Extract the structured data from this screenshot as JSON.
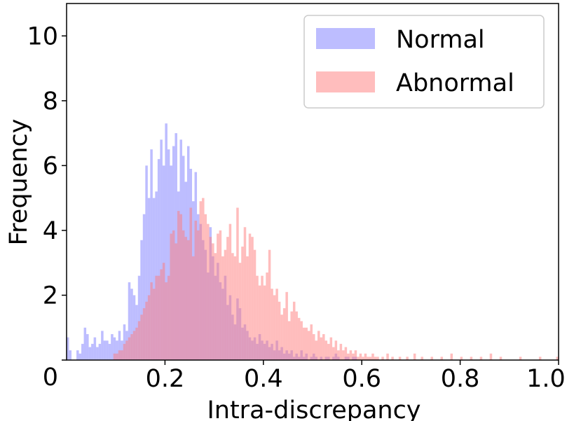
{
  "chart_data": {
    "type": "histogram",
    "title": "",
    "xlabel": "Intra-discrepancy",
    "ylabel": "Frequency",
    "xlim": [
      0.0,
      1.0
    ],
    "ylim": [
      0,
      11
    ],
    "bin_width": 0.005,
    "x_ticks": [
      {
        "value": 0.2,
        "label": "0.2"
      },
      {
        "value": 0.4,
        "label": "0.4"
      },
      {
        "value": 0.6,
        "label": "0.6"
      },
      {
        "value": 0.8,
        "label": "0.8"
      },
      {
        "value": 1.0,
        "label": "1.0"
      }
    ],
    "y_ticks": [
      {
        "value": 0,
        "label": "0"
      },
      {
        "value": 2,
        "label": "2"
      },
      {
        "value": 4,
        "label": "4"
      },
      {
        "value": 6,
        "label": "6"
      },
      {
        "value": 8,
        "label": "8"
      },
      {
        "value": 10,
        "label": "10"
      }
    ],
    "legend": {
      "position": "top-right"
    },
    "series": [
      {
        "name": "Normal",
        "color": "#7b7bff",
        "opacity": 0.5,
        "bins": [
          [
            0.0,
            0.7
          ],
          [
            0.005,
            0.3
          ],
          [
            0.01,
            0.0
          ],
          [
            0.015,
            0.0
          ],
          [
            0.02,
            0.3
          ],
          [
            0.025,
            0.2
          ],
          [
            0.03,
            0.5
          ],
          [
            0.035,
            1.0
          ],
          [
            0.04,
            0.8
          ],
          [
            0.045,
            0.4
          ],
          [
            0.05,
            0.5
          ],
          [
            0.055,
            0.7
          ],
          [
            0.06,
            0.4
          ],
          [
            0.065,
            0.5
          ],
          [
            0.07,
            0.9
          ],
          [
            0.075,
            0.6
          ],
          [
            0.08,
            0.6
          ],
          [
            0.085,
            0.5
          ],
          [
            0.09,
            0.8
          ],
          [
            0.095,
            0.7
          ],
          [
            0.1,
            0.6
          ],
          [
            0.105,
            0.9
          ],
          [
            0.11,
            0.6
          ],
          [
            0.115,
            1.1
          ],
          [
            0.12,
            0.9
          ],
          [
            0.125,
            2.4
          ],
          [
            0.13,
            2.2
          ],
          [
            0.135,
            2.0
          ],
          [
            0.14,
            1.7
          ],
          [
            0.145,
            2.6
          ],
          [
            0.15,
            3.7
          ],
          [
            0.155,
            4.5
          ],
          [
            0.16,
            6.0
          ],
          [
            0.165,
            5.0
          ],
          [
            0.17,
            6.5
          ],
          [
            0.175,
            5.0
          ],
          [
            0.18,
            5.2
          ],
          [
            0.185,
            6.2
          ],
          [
            0.19,
            6.8
          ],
          [
            0.195,
            6.0
          ],
          [
            0.2,
            7.3
          ],
          [
            0.205,
            6.5
          ],
          [
            0.21,
            6.0
          ],
          [
            0.215,
            6.6
          ],
          [
            0.22,
            7.0
          ],
          [
            0.225,
            5.2
          ],
          [
            0.23,
            6.8
          ],
          [
            0.235,
            6.3
          ],
          [
            0.24,
            5.5
          ],
          [
            0.245,
            6.6
          ],
          [
            0.25,
            5.9
          ],
          [
            0.255,
            4.9
          ],
          [
            0.26,
            5.8
          ],
          [
            0.265,
            4.5
          ],
          [
            0.27,
            4.2
          ],
          [
            0.275,
            3.7
          ],
          [
            0.28,
            3.4
          ],
          [
            0.285,
            2.7
          ],
          [
            0.29,
            4.1
          ],
          [
            0.295,
            3.2
          ],
          [
            0.3,
            2.6
          ],
          [
            0.305,
            3.0
          ],
          [
            0.31,
            2.4
          ],
          [
            0.315,
            2.2
          ],
          [
            0.32,
            2.6
          ],
          [
            0.325,
            1.7
          ],
          [
            0.33,
            2.0
          ],
          [
            0.335,
            1.4
          ],
          [
            0.34,
            1.1
          ],
          [
            0.345,
            1.9
          ],
          [
            0.35,
            1.6
          ],
          [
            0.355,
            1.0
          ],
          [
            0.36,
            1.1
          ],
          [
            0.365,
            0.9
          ],
          [
            0.37,
            0.7
          ],
          [
            0.375,
            0.6
          ],
          [
            0.38,
            0.7
          ],
          [
            0.385,
            0.5
          ],
          [
            0.39,
            0.8
          ],
          [
            0.395,
            0.6
          ],
          [
            0.4,
            0.5
          ],
          [
            0.405,
            0.6
          ],
          [
            0.41,
            0.4
          ],
          [
            0.415,
            0.5
          ],
          [
            0.42,
            0.3
          ],
          [
            0.425,
            0.6
          ],
          [
            0.43,
            0.3
          ],
          [
            0.435,
            0.4
          ],
          [
            0.44,
            0.2
          ],
          [
            0.445,
            0.3
          ],
          [
            0.45,
            0.2
          ],
          [
            0.455,
            0.3
          ],
          [
            0.46,
            0.1
          ],
          [
            0.465,
            0.2
          ],
          [
            0.47,
            0.1
          ],
          [
            0.475,
            0.3
          ],
          [
            0.48,
            0.1
          ],
          [
            0.485,
            0.2
          ],
          [
            0.49,
            0.0
          ],
          [
            0.495,
            0.1
          ],
          [
            0.5,
            0.2
          ],
          [
            0.505,
            0.1
          ],
          [
            0.51,
            0.0
          ],
          [
            0.515,
            0.1
          ],
          [
            0.52,
            0.0
          ],
          [
            0.525,
            0.1
          ],
          [
            0.53,
            0.1
          ],
          [
            0.535,
            0.0
          ],
          [
            0.54,
            0.1
          ],
          [
            0.545,
            0.2
          ],
          [
            0.55,
            0.1
          ],
          [
            0.555,
            0.0
          ],
          [
            0.56,
            0.0
          ],
          [
            0.565,
            0.1
          ],
          [
            0.57,
            0.1
          ],
          [
            0.575,
            0.0
          ],
          [
            0.58,
            0.1
          ],
          [
            0.585,
            0.1
          ]
        ]
      },
      {
        "name": "Abnormal",
        "color": "#ff7b7b",
        "opacity": 0.5,
        "bins": [
          [
            0.095,
            0.2
          ],
          [
            0.1,
            0.2
          ],
          [
            0.105,
            0.3
          ],
          [
            0.11,
            0.3
          ],
          [
            0.115,
            0.5
          ],
          [
            0.12,
            0.6
          ],
          [
            0.125,
            0.7
          ],
          [
            0.13,
            0.8
          ],
          [
            0.135,
            0.9
          ],
          [
            0.14,
            1.0
          ],
          [
            0.145,
            1.2
          ],
          [
            0.15,
            1.4
          ],
          [
            0.155,
            1.6
          ],
          [
            0.16,
            1.8
          ],
          [
            0.165,
            2.0
          ],
          [
            0.17,
            2.4
          ],
          [
            0.175,
            2.2
          ],
          [
            0.18,
            2.6
          ],
          [
            0.185,
            2.6
          ],
          [
            0.19,
            2.8
          ],
          [
            0.195,
            3.0
          ],
          [
            0.2,
            2.4
          ],
          [
            0.205,
            2.6
          ],
          [
            0.21,
            3.9
          ],
          [
            0.215,
            4.0
          ],
          [
            0.22,
            3.6
          ],
          [
            0.225,
            4.6
          ],
          [
            0.23,
            4.5
          ],
          [
            0.235,
            4.0
          ],
          [
            0.24,
            3.8
          ],
          [
            0.245,
            3.7
          ],
          [
            0.25,
            4.7
          ],
          [
            0.255,
            3.2
          ],
          [
            0.26,
            4.3
          ],
          [
            0.265,
            4.0
          ],
          [
            0.27,
            4.9
          ],
          [
            0.275,
            5.0
          ],
          [
            0.28,
            4.5
          ],
          [
            0.285,
            4.2
          ],
          [
            0.29,
            3.8
          ],
          [
            0.295,
            3.6
          ],
          [
            0.3,
            3.3
          ],
          [
            0.305,
            3.9
          ],
          [
            0.31,
            4.0
          ],
          [
            0.315,
            3.2
          ],
          [
            0.32,
            3.4
          ],
          [
            0.325,
            3.8
          ],
          [
            0.33,
            4.2
          ],
          [
            0.335,
            3.3
          ],
          [
            0.34,
            3.2
          ],
          [
            0.345,
            4.7
          ],
          [
            0.35,
            3.0
          ],
          [
            0.355,
            3.5
          ],
          [
            0.36,
            4.1
          ],
          [
            0.365,
            3.2
          ],
          [
            0.37,
            3.9
          ],
          [
            0.375,
            3.8
          ],
          [
            0.38,
            3.4
          ],
          [
            0.385,
            2.6
          ],
          [
            0.39,
            2.3
          ],
          [
            0.395,
            2.6
          ],
          [
            0.4,
            2.3
          ],
          [
            0.405,
            2.7
          ],
          [
            0.41,
            3.4
          ],
          [
            0.415,
            2.2
          ],
          [
            0.42,
            2.0
          ],
          [
            0.425,
            2.2
          ],
          [
            0.43,
            1.8
          ],
          [
            0.435,
            1.4
          ],
          [
            0.44,
            1.6
          ],
          [
            0.445,
            2.1
          ],
          [
            0.45,
            1.2
          ],
          [
            0.455,
            1.5
          ],
          [
            0.46,
            1.8
          ],
          [
            0.465,
            1.5
          ],
          [
            0.47,
            1.3
          ],
          [
            0.475,
            1.2
          ],
          [
            0.48,
            1.0
          ],
          [
            0.485,
            1.0
          ],
          [
            0.49,
            0.9
          ],
          [
            0.495,
            1.1
          ],
          [
            0.5,
            0.8
          ],
          [
            0.505,
            0.6
          ],
          [
            0.51,
            0.9
          ],
          [
            0.515,
            0.7
          ],
          [
            0.52,
            0.8
          ],
          [
            0.525,
            0.6
          ],
          [
            0.53,
            0.5
          ],
          [
            0.535,
            0.7
          ],
          [
            0.54,
            0.4
          ],
          [
            0.545,
            0.6
          ],
          [
            0.55,
            0.3
          ],
          [
            0.555,
            0.5
          ],
          [
            0.56,
            0.3
          ],
          [
            0.565,
            0.4
          ],
          [
            0.57,
            0.2
          ],
          [
            0.575,
            0.3
          ],
          [
            0.58,
            0.2
          ],
          [
            0.585,
            0.3
          ],
          [
            0.59,
            0.1
          ],
          [
            0.595,
            0.2
          ],
          [
            0.6,
            0.1
          ],
          [
            0.605,
            0.2
          ],
          [
            0.61,
            0.1
          ],
          [
            0.615,
            0.1
          ],
          [
            0.62,
            0.2
          ],
          [
            0.625,
            0.1
          ],
          [
            0.63,
            0.1
          ],
          [
            0.64,
            0.1
          ],
          [
            0.65,
            0.2
          ],
          [
            0.66,
            0.1
          ],
          [
            0.675,
            0.1
          ],
          [
            0.69,
            0.1
          ],
          [
            0.705,
            0.2
          ],
          [
            0.72,
            0.1
          ],
          [
            0.74,
            0.1
          ],
          [
            0.76,
            0.1
          ],
          [
            0.78,
            0.2
          ],
          [
            0.8,
            0.1
          ],
          [
            0.82,
            0.1
          ],
          [
            0.84,
            0.1
          ],
          [
            0.86,
            0.2
          ],
          [
            0.88,
            0.1
          ],
          [
            0.92,
            0.1
          ],
          [
            0.96,
            0.1
          ],
          [
            0.995,
            0.1
          ]
        ]
      }
    ]
  }
}
